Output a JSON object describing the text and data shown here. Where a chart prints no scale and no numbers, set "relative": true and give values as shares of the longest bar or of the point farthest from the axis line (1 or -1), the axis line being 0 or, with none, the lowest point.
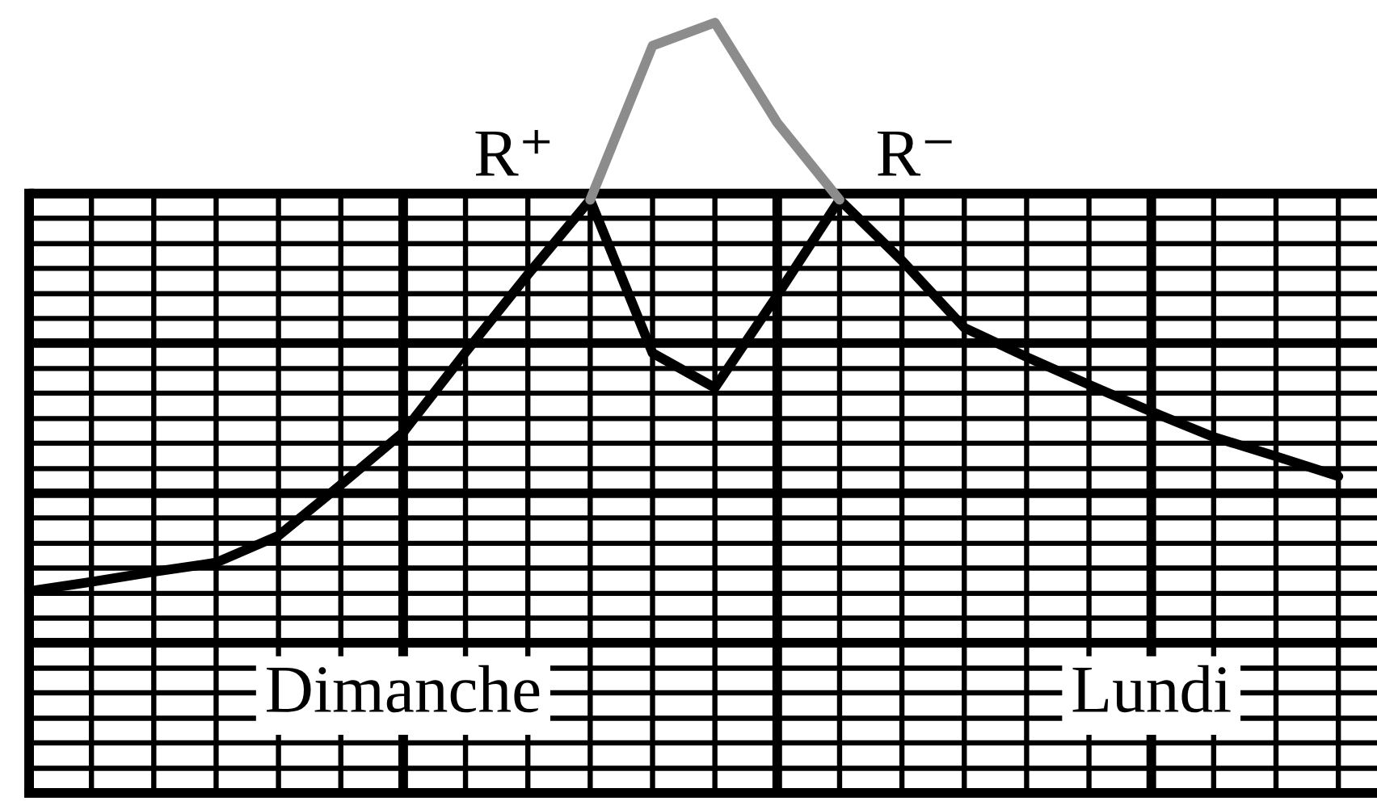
{
  "chart_data": {
    "type": "line",
    "relative": true,
    "grid": "x",
    "tick_labels": "x",
    "categories": [
      null,
      null,
      null,
      null,
      null,
      null,
      "Dimanche",
      null,
      null,
      null,
      null,
      null,
      null,
      null,
      null,
      null,
      null,
      null,
      "Lundi",
      null,
      null,
      null
    ],
    "ref_lines": [
      {
        "axis": "y",
        "value": 0.032
      },
      {
        "axis": "y",
        "value": 0.065
      },
      {
        "axis": "y",
        "value": 0.097
      },
      {
        "axis": "y",
        "value": 0.13
      },
      {
        "axis": "y",
        "value": 0.162
      },
      {
        "axis": "y",
        "value": 0.195
      },
      {
        "axis": "y",
        "value": 0.227
      },
      {
        "axis": "y",
        "value": 0.259
      },
      {
        "axis": "y",
        "value": 0.292
      },
      {
        "axis": "y",
        "value": 0.324
      },
      {
        "axis": "y",
        "value": 0.357
      },
      {
        "axis": "y",
        "value": 0.389
      },
      {
        "axis": "y",
        "value": 0.421
      },
      {
        "axis": "y",
        "value": 0.454
      },
      {
        "axis": "y",
        "value": 0.486
      },
      {
        "axis": "y",
        "value": 0.519
      },
      {
        "axis": "y",
        "value": 0.551
      },
      {
        "axis": "y",
        "value": 0.584
      },
      {
        "axis": "y",
        "value": 0.616
      },
      {
        "axis": "y",
        "value": 0.648
      },
      {
        "axis": "y",
        "value": 0.681
      },
      {
        "axis": "y",
        "value": 0.713
      },
      {
        "axis": "y",
        "value": 0.746
      },
      {
        "axis": "y",
        "value": 0.778
      }
    ],
    "series": [
      {
        "color": "#000000",
        "values": [
          0.262,
          0.274,
          0.287,
          0.299,
          0.334,
          0.4,
          0.468,
          0.572,
          0.673,
          0.77,
          0.571,
          0.526,
          0.646,
          0.77,
          0.691,
          0.604,
          0.566,
          0.53,
          0.495,
          0.462,
          0.437,
          0.411
        ]
      },
      {
        "color": "#8c8c8c",
        "values": [
          null,
          null,
          null,
          null,
          null,
          null,
          null,
          null,
          null,
          0.77,
          0.97,
          1.0,
          0.87,
          0.77,
          null,
          null,
          null,
          null,
          null,
          null,
          null,
          null
        ]
      }
    ],
    "annotations": [
      "R⁺",
      "R⁻"
    ]
  }
}
